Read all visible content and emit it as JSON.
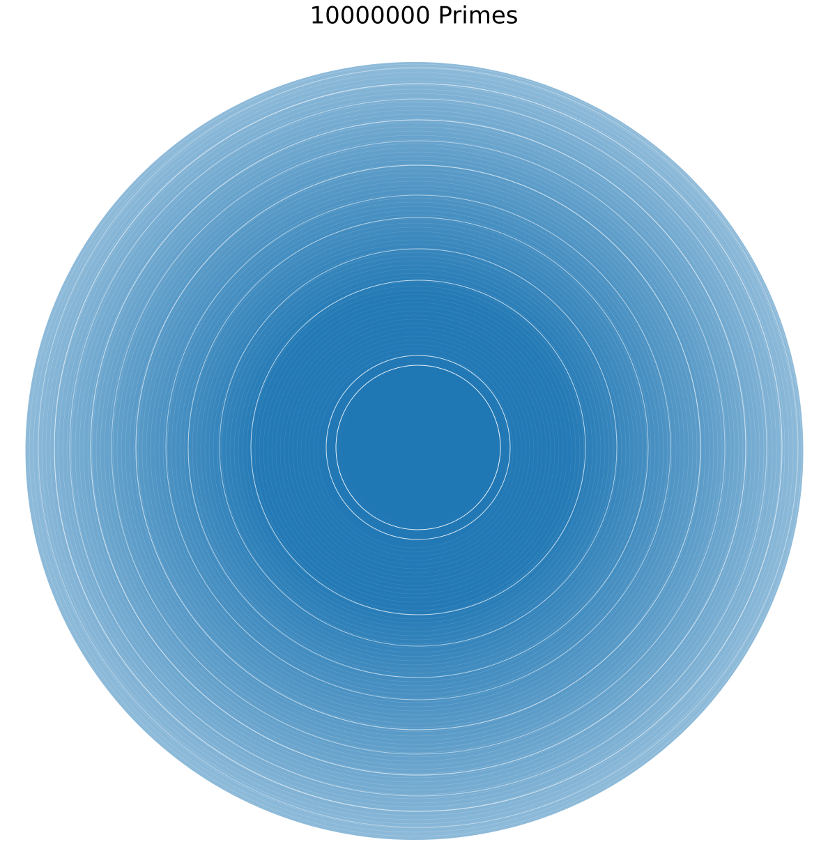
{
  "chart_data": {
    "type": "polar_scatter",
    "title": "10000000 Primes",
    "color": "#1f77b4"
  }
}
